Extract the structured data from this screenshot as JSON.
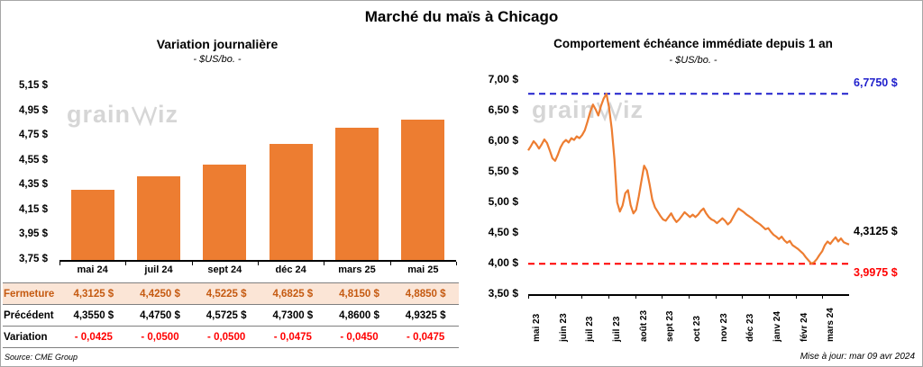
{
  "page": {
    "title": "Marché du maïs à Chicago",
    "source": "Source: CME Group",
    "updated": "Mise à jour: mar 09 avr 2024",
    "watermark": {
      "prefix": "grain",
      "suffix": "iz"
    }
  },
  "chart_data": [
    {
      "type": "bar",
      "title": "Variation  journalière",
      "subtitle": "- $US/bo. -",
      "xlabel": "",
      "ylabel": "",
      "categories": [
        "mai 24",
        "juil 24",
        "sept 24",
        "déc 24",
        "mars 25",
        "mai 25"
      ],
      "values": [
        4.3125,
        4.425,
        4.5225,
        4.6825,
        4.815,
        4.885
      ],
      "ylim": [
        3.75,
        5.15
      ],
      "ytick_labels": [
        "5,15 $",
        "4,95 $",
        "4,75 $",
        "4,55 $",
        "4,35 $",
        "4,15 $",
        "3,95 $",
        "3,75 $"
      ],
      "bar_color": "#ED7D31",
      "grid": false,
      "table": {
        "rows": [
          {
            "label": "Fermeture",
            "values": [
              "4,3125  $",
              "4,4250  $",
              "4,5225  $",
              "4,6825  $",
              "4,8150  $",
              "4,8850  $"
            ]
          },
          {
            "label": "Précédent",
            "values": [
              "4,3550  $",
              "4,4750  $",
              "4,5725  $",
              "4,7300  $",
              "4,8600  $",
              "4,9325  $"
            ]
          },
          {
            "label": "Variation",
            "values": [
              "- 0,0425",
              "- 0,0500",
              "- 0,0500",
              "- 0,0475",
              "- 0,0450",
              "- 0,0475"
            ]
          }
        ]
      }
    },
    {
      "type": "line",
      "title": "Comportement  échéance immédiate depuis 1 an",
      "subtitle": "- $US/bo. -",
      "xlabel": "",
      "ylabel": "",
      "x_labels": [
        "mai 23",
        "juin 23",
        "juil 23",
        "juil 23",
        "août 23",
        "sept 23",
        "oct 23",
        "nov 23",
        "déc 23",
        "janv 24",
        "févr 24",
        "mars 24"
      ],
      "ylim": [
        3.5,
        7.0
      ],
      "ytick_labels": [
        "7,00 $",
        "6,50 $",
        "6,00 $",
        "5,50 $",
        "5,00 $",
        "4,50 $",
        "4,00 $",
        "3,50 $"
      ],
      "line_color": "#ED7D31",
      "grid": false,
      "high_line": {
        "value": 6.775,
        "label": "6,7750 $",
        "color": "#2020CC"
      },
      "low_line": {
        "value": 3.9975,
        "label": "3,9975 $",
        "color": "#FF0000"
      },
      "last_label": {
        "value": 4.3125,
        "label": "4,3125 $"
      },
      "values": [
        5.85,
        5.92,
        6.0,
        5.95,
        5.88,
        5.95,
        6.03,
        5.97,
        5.85,
        5.72,
        5.68,
        5.78,
        5.9,
        5.98,
        6.02,
        5.98,
        6.05,
        6.02,
        6.08,
        6.05,
        6.1,
        6.18,
        6.32,
        6.48,
        6.6,
        6.52,
        6.42,
        6.58,
        6.7,
        6.775,
        6.55,
        6.2,
        5.7,
        5.0,
        4.85,
        4.95,
        5.15,
        5.2,
        4.95,
        4.82,
        4.88,
        5.1,
        5.35,
        5.6,
        5.52,
        5.3,
        5.05,
        4.92,
        4.85,
        4.78,
        4.72,
        4.7,
        4.76,
        4.82,
        4.74,
        4.68,
        4.72,
        4.78,
        4.84,
        4.8,
        4.76,
        4.8,
        4.76,
        4.8,
        4.86,
        4.9,
        4.82,
        4.76,
        4.72,
        4.7,
        4.66,
        4.7,
        4.74,
        4.7,
        4.64,
        4.68,
        4.76,
        4.84,
        4.9,
        4.87,
        4.84,
        4.8,
        4.77,
        4.74,
        4.7,
        4.67,
        4.64,
        4.6,
        4.56,
        4.58,
        4.52,
        4.47,
        4.44,
        4.4,
        4.44,
        4.38,
        4.34,
        4.37,
        4.3,
        4.27,
        4.24,
        4.2,
        4.16,
        4.1,
        4.05,
        4.0,
        4.02,
        4.07,
        4.14,
        4.2,
        4.3,
        4.36,
        4.32,
        4.38,
        4.43,
        4.36,
        4.41,
        4.35,
        4.33,
        4.3125
      ]
    }
  ]
}
